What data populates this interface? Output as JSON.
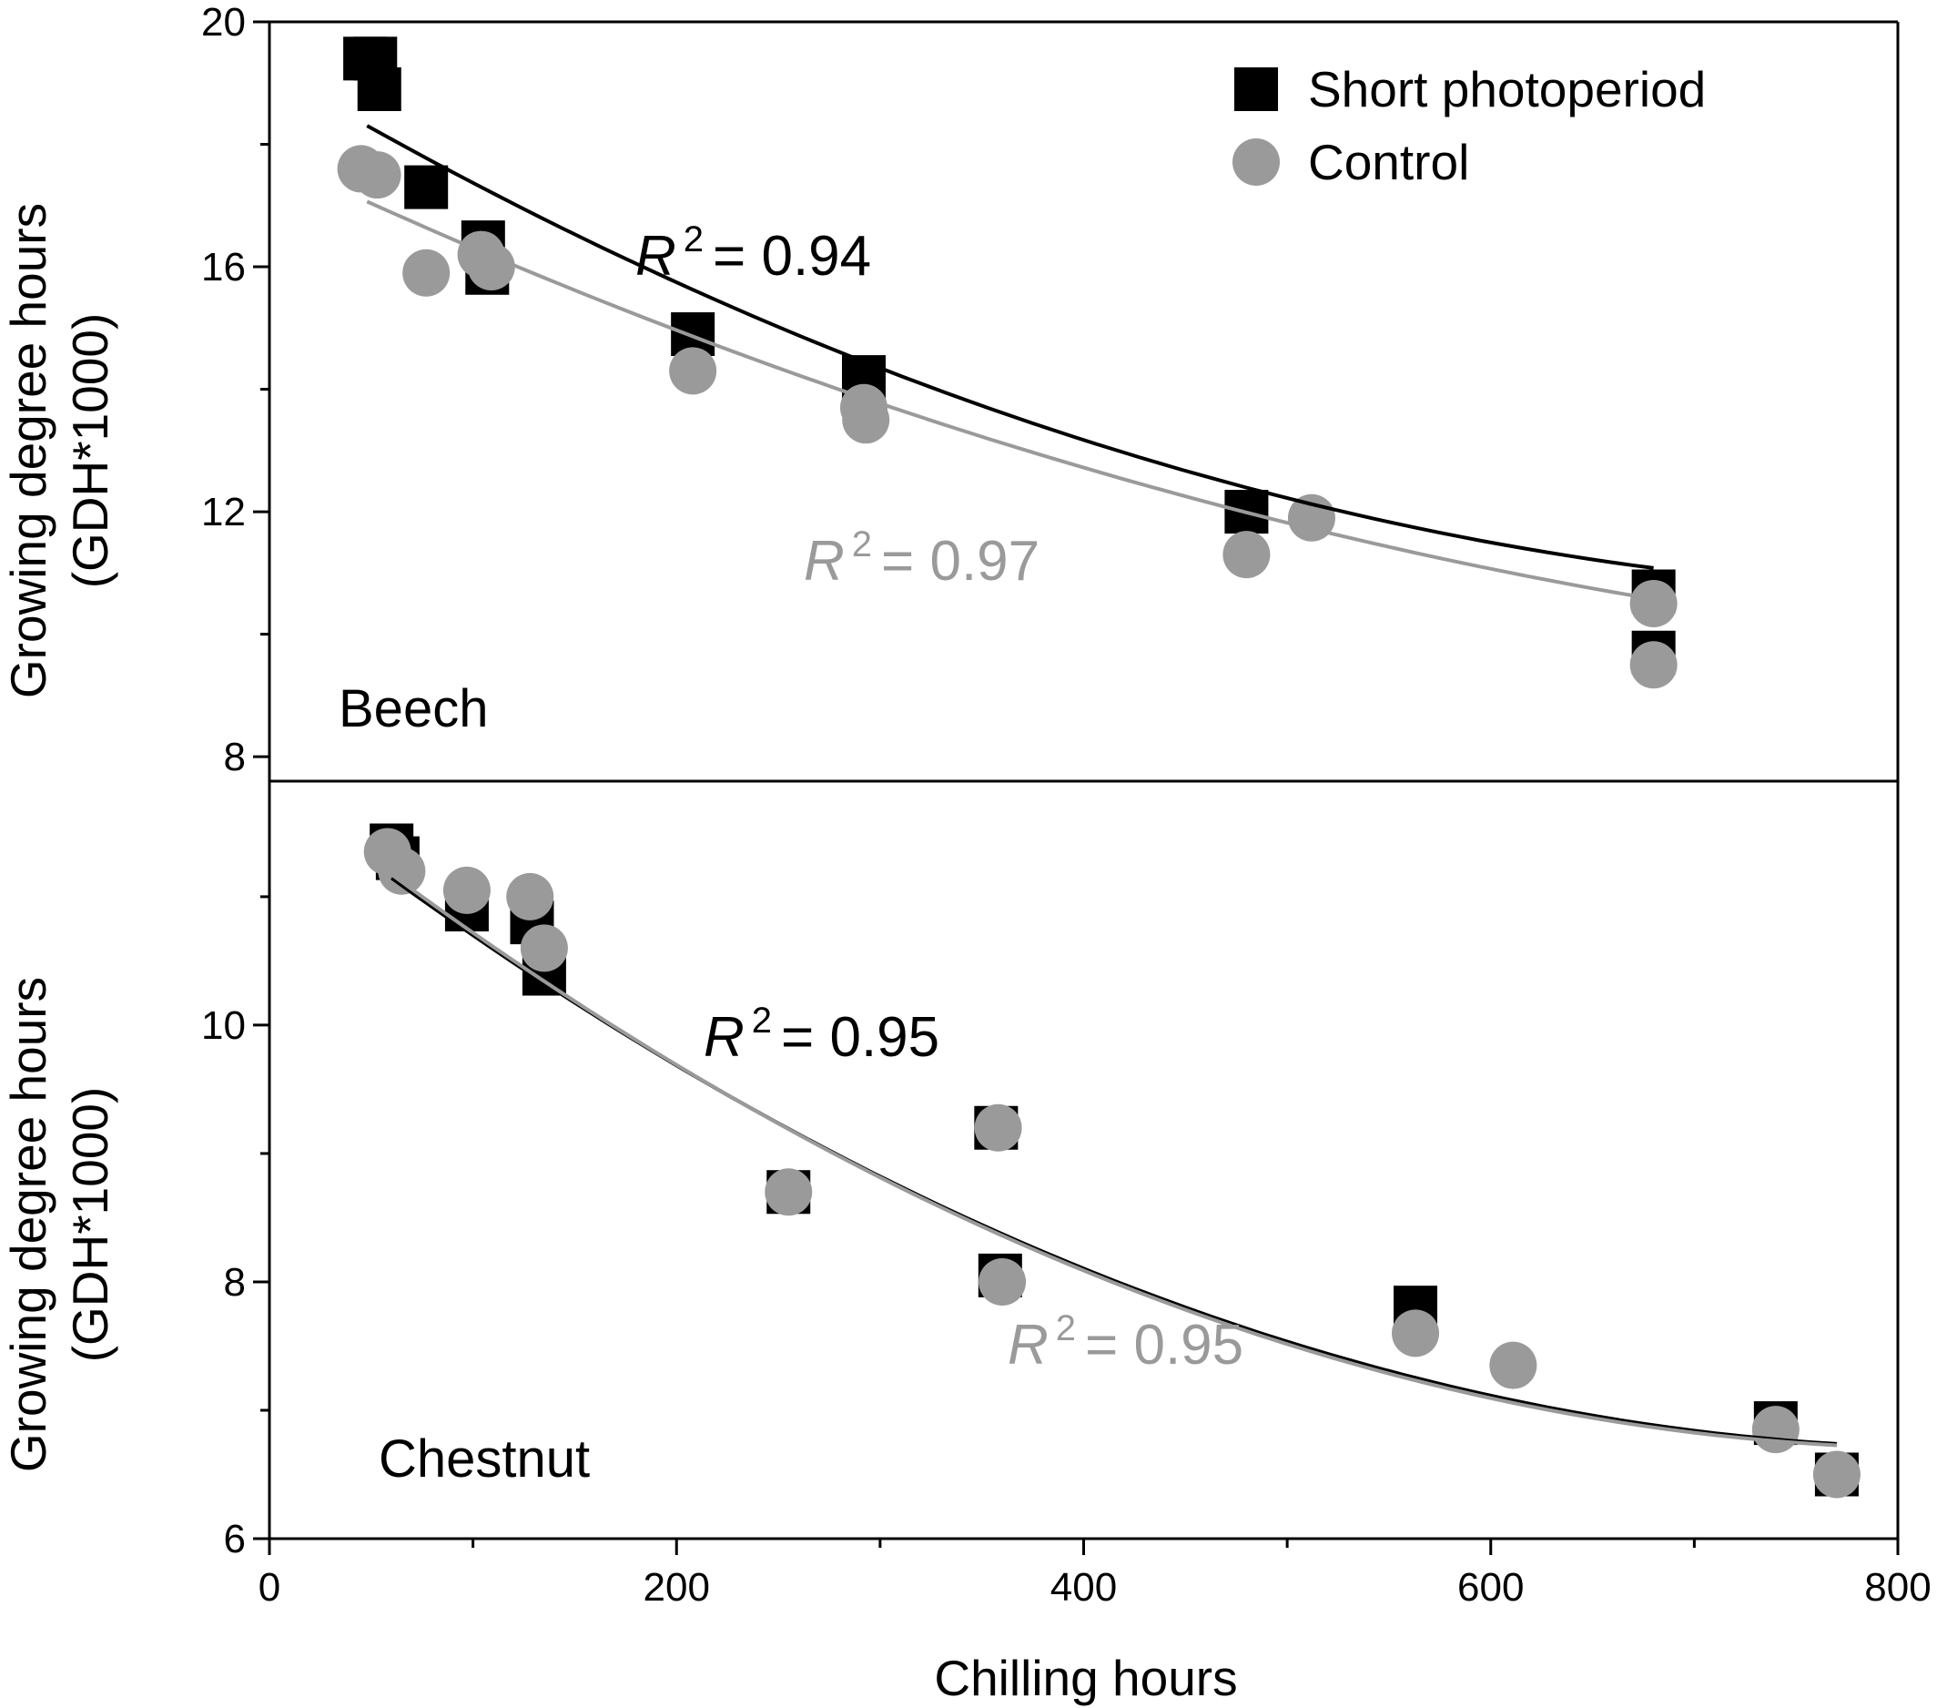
{
  "chart_data": [
    {
      "type": "scatter",
      "panel_label": "Beech",
      "xlabel": "Chilling hours",
      "ylabel_line1": "Growing degree hours",
      "ylabel_line2": "(GDH*1000)",
      "xlim": [
        0,
        800
      ],
      "ylim": [
        7.6,
        20
      ],
      "y_ticks": [
        8,
        12,
        16,
        20
      ],
      "y_minor_ticks": [
        10,
        14,
        18
      ],
      "legend": {
        "position": "top-right",
        "entries": [
          "Short photoperiod",
          "Control"
        ]
      },
      "series": [
        {
          "name": "Short photoperiod",
          "marker": "square",
          "color": "#000000",
          "points": [
            [
              47,
              19.4
            ],
            [
              52,
              19.4
            ],
            [
              54,
              18.9
            ],
            [
              77,
              17.3
            ],
            [
              105,
              16.4
            ],
            [
              107,
              15.9
            ],
            [
              208,
              14.9
            ],
            [
              292,
              14.2
            ],
            [
              480,
              12.0
            ],
            [
              680,
              10.7
            ],
            [
              680,
              9.7
            ]
          ],
          "fit": {
            "x": [
              48,
              680
            ],
            "coef": [
              19.22,
              -0.01962,
              1.125e-05
            ],
            "r2_label": "= 0.94",
            "r2_prefix": "R",
            "r2_exp": "2"
          }
        },
        {
          "name": "Control",
          "marker": "circle",
          "color": "#9a9a9a",
          "points": [
            [
              45,
              17.6
            ],
            [
              53,
              17.5
            ],
            [
              77,
              15.9
            ],
            [
              104,
              16.2
            ],
            [
              109,
              16.0
            ],
            [
              208,
              14.3
            ],
            [
              292,
              13.7
            ],
            [
              293,
              13.5
            ],
            [
              480,
              11.3
            ],
            [
              512,
              11.9
            ],
            [
              680,
              10.5
            ],
            [
              680,
              9.5
            ]
          ],
          "fit": {
            "x": [
              48,
              680
            ],
            "coef": [
              17.8,
              -0.01566,
              7.4e-06
            ],
            "r2_label": "= 0.97",
            "r2_prefix": "R",
            "r2_exp": "2"
          }
        }
      ]
    },
    {
      "type": "scatter",
      "panel_label": "Chestnut",
      "xlabel": "Chilling hours",
      "ylabel_line1": "Growing degree hours",
      "ylabel_line2": "(GDH*1000)",
      "xlim": [
        0,
        800
      ],
      "x_ticks": [
        0,
        200,
        400,
        600,
        800
      ],
      "x_minor_ticks": [
        100,
        300,
        500,
        700
      ],
      "ylim": [
        6,
        11.9
      ],
      "y_ticks": [
        6,
        8,
        10
      ],
      "y_minor_ticks": [
        7,
        9,
        11
      ],
      "series": [
        {
          "name": "Short photoperiod",
          "marker": "square",
          "color": "#000000",
          "points": [
            [
              60,
              11.4
            ],
            [
              63,
              11.3
            ],
            [
              97,
              10.9
            ],
            [
              129,
              10.8
            ],
            [
              135,
              10.4
            ],
            [
              255,
              8.7
            ],
            [
              357,
              9.2
            ],
            [
              359,
              8.05
            ],
            [
              563,
              7.8
            ],
            [
              740,
              6.9
            ],
            [
              770,
              6.5
            ]
          ],
          "fit": {
            "x": [
              60,
              770
            ],
            "coef": [
              11.86,
              -0.01235,
              7.4e-06
            ],
            "r2_label": "= 0.95",
            "r2_prefix": "R",
            "r2_exp": "2"
          }
        },
        {
          "name": "Control",
          "marker": "circle",
          "color": "#9a9a9a",
          "points": [
            [
              58,
              11.35
            ],
            [
              65,
              11.2
            ],
            [
              97,
              11.05
            ],
            [
              128,
              11.0
            ],
            [
              135,
              10.6
            ],
            [
              255,
              8.7
            ],
            [
              358,
              9.2
            ],
            [
              360,
              8.0
            ],
            [
              563,
              7.6
            ],
            [
              611,
              7.35
            ],
            [
              740,
              6.85
            ],
            [
              770,
              6.5
            ]
          ],
          "fit": {
            "x": [
              60,
              770
            ],
            "coef": [
              11.9,
              -0.01257,
              7.6e-06
            ],
            "r2_label": "= 0.95",
            "r2_prefix": "R",
            "r2_exp": "2"
          }
        }
      ]
    }
  ],
  "colors": {
    "short_photoperiod": "#000000",
    "control": "#9a9a9a",
    "axis": "#000000"
  }
}
